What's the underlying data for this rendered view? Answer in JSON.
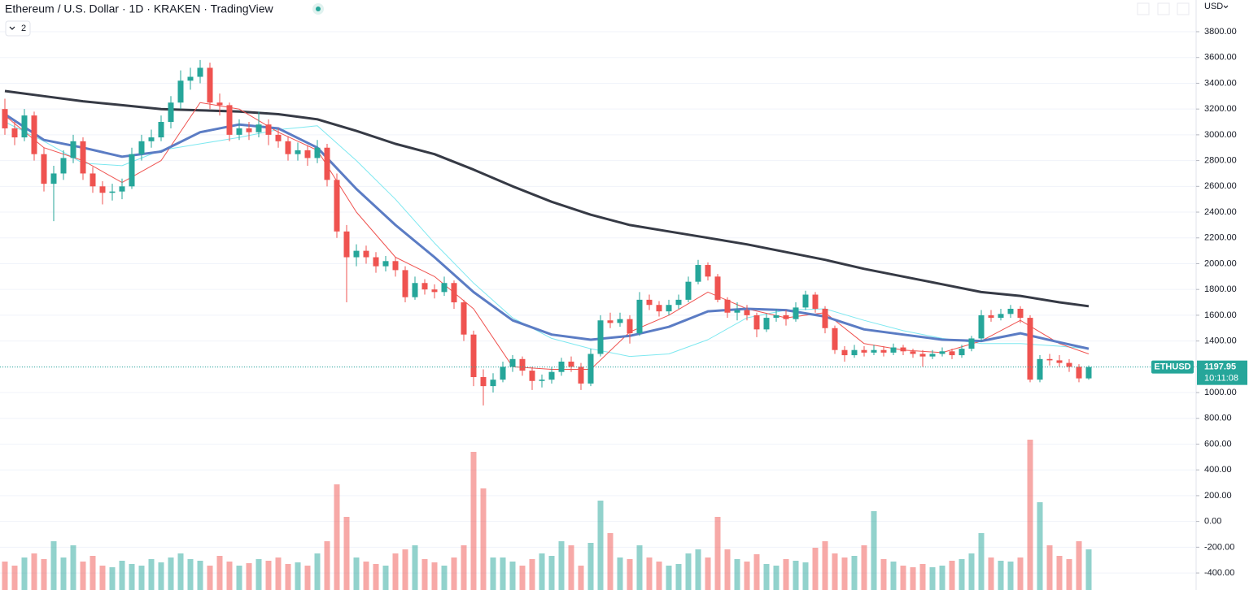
{
  "chart_data": {
    "type": "candlestick",
    "title": "Ethereum / U.S. Dollar · 1D · KRAKEN · TradingView",
    "indicator_badge": "2",
    "currency": "USD",
    "symbol": "ETHUSD",
    "countdown": "10:11:08",
    "up_color": "#26a69a",
    "down_color": "#ef5350",
    "grid": true,
    "ylim": [
      -532,
      4046
    ],
    "yticks": [
      {
        "value": -400,
        "label": "-400.00"
      },
      {
        "value": -200,
        "label": "-200.00"
      },
      {
        "value": 0,
        "label": "0.00"
      },
      {
        "value": 200,
        "label": "200.00"
      },
      {
        "value": 400,
        "label": "400.00"
      },
      {
        "value": 600,
        "label": "600.00"
      },
      {
        "value": 800,
        "label": "800.00"
      },
      {
        "value": 1000,
        "label": "1000.00"
      },
      {
        "value": 1200,
        "label": "1200.00"
      },
      {
        "value": 1400,
        "label": "1400.00"
      },
      {
        "value": 1600,
        "label": "1600.00"
      },
      {
        "value": 1800,
        "label": "1800.00"
      },
      {
        "value": 2000,
        "label": "2000.00"
      },
      {
        "value": 2200,
        "label": "2200.00"
      },
      {
        "value": 2400,
        "label": "2400.00"
      },
      {
        "value": 2600,
        "label": "2600.00"
      },
      {
        "value": 2800,
        "label": "2800.00"
      },
      {
        "value": 3000,
        "label": "3000.00"
      },
      {
        "value": 3200,
        "label": "3200.00"
      },
      {
        "value": 3400,
        "label": "3400.00"
      },
      {
        "value": 3600,
        "label": "3600.00"
      },
      {
        "value": 3800,
        "label": "3800.00"
      }
    ],
    "ohlc": [
      [
        3200,
        3280,
        3000,
        3050
      ],
      [
        3050,
        3100,
        2920,
        2980
      ],
      [
        2980,
        3200,
        2950,
        3150
      ],
      [
        3150,
        3180,
        2800,
        2850
      ],
      [
        2850,
        2900,
        2560,
        2620
      ],
      [
        2620,
        2760,
        2330,
        2700
      ],
      [
        2700,
        2880,
        2650,
        2820
      ],
      [
        2820,
        3000,
        2780,
        2950
      ],
      [
        2950,
        2980,
        2650,
        2700
      ],
      [
        2700,
        2750,
        2550,
        2600
      ],
      [
        2600,
        2640,
        2460,
        2550
      ],
      [
        2550,
        2620,
        2490,
        2560
      ],
      [
        2560,
        2660,
        2500,
        2600
      ],
      [
        2600,
        2900,
        2580,
        2850
      ],
      [
        2850,
        3000,
        2800,
        2950
      ],
      [
        2950,
        3040,
        2900,
        2980
      ],
      [
        2980,
        3150,
        2950,
        3100
      ],
      [
        3100,
        3300,
        3050,
        3250
      ],
      [
        3250,
        3500,
        3200,
        3420
      ],
      [
        3420,
        3520,
        3350,
        3450
      ],
      [
        3450,
        3580,
        3400,
        3520
      ],
      [
        3520,
        3560,
        3200,
        3250
      ],
      [
        3250,
        3320,
        3150,
        3230
      ],
      [
        3230,
        3250,
        2950,
        3000
      ],
      [
        3000,
        3120,
        2960,
        3050
      ],
      [
        3050,
        3100,
        2960,
        3020
      ],
      [
        3020,
        3180,
        2980,
        3080
      ],
      [
        3080,
        3120,
        2920,
        3000
      ],
      [
        3000,
        3050,
        2900,
        2950
      ],
      [
        2950,
        2990,
        2800,
        2850
      ],
      [
        2850,
        2940,
        2800,
        2880
      ],
      [
        2880,
        2920,
        2760,
        2820
      ],
      [
        2820,
        2960,
        2780,
        2900
      ],
      [
        2900,
        2930,
        2600,
        2650
      ],
      [
        2650,
        2700,
        2200,
        2250
      ],
      [
        2250,
        2300,
        1700,
        2050
      ],
      [
        2050,
        2150,
        1980,
        2100
      ],
      [
        2100,
        2140,
        2000,
        2050
      ],
      [
        2050,
        2090,
        1930,
        1980
      ],
      [
        1980,
        2060,
        1940,
        2020
      ],
      [
        2020,
        2050,
        1900,
        1950
      ],
      [
        1950,
        1980,
        1700,
        1740
      ],
      [
        1740,
        1900,
        1720,
        1850
      ],
      [
        1850,
        1880,
        1760,
        1800
      ],
      [
        1800,
        1840,
        1730,
        1780
      ],
      [
        1780,
        1900,
        1750,
        1850
      ],
      [
        1850,
        1870,
        1650,
        1700
      ],
      [
        1700,
        1720,
        1400,
        1450
      ],
      [
        1450,
        1480,
        1050,
        1120
      ],
      [
        1120,
        1180,
        900,
        1050
      ],
      [
        1050,
        1150,
        1000,
        1100
      ],
      [
        1100,
        1240,
        1080,
        1200
      ],
      [
        1200,
        1290,
        1160,
        1260
      ],
      [
        1260,
        1280,
        1130,
        1170
      ],
      [
        1170,
        1200,
        1020,
        1090
      ],
      [
        1090,
        1140,
        1040,
        1100
      ],
      [
        1100,
        1200,
        1070,
        1160
      ],
      [
        1160,
        1270,
        1130,
        1240
      ],
      [
        1240,
        1280,
        1160,
        1200
      ],
      [
        1200,
        1230,
        1020,
        1070
      ],
      [
        1070,
        1340,
        1050,
        1300
      ],
      [
        1300,
        1600,
        1280,
        1560
      ],
      [
        1560,
        1620,
        1500,
        1540
      ],
      [
        1540,
        1620,
        1510,
        1570
      ],
      [
        1570,
        1600,
        1380,
        1460
      ],
      [
        1460,
        1780,
        1440,
        1720
      ],
      [
        1720,
        1760,
        1640,
        1680
      ],
      [
        1680,
        1710,
        1590,
        1630
      ],
      [
        1630,
        1720,
        1600,
        1680
      ],
      [
        1680,
        1760,
        1650,
        1720
      ],
      [
        1720,
        1900,
        1700,
        1860
      ],
      [
        1860,
        2030,
        1840,
        1990
      ],
      [
        1990,
        2010,
        1870,
        1900
      ],
      [
        1900,
        1920,
        1700,
        1720
      ],
      [
        1720,
        1740,
        1580,
        1620
      ],
      [
        1620,
        1700,
        1560,
        1640
      ],
      [
        1640,
        1680,
        1560,
        1600
      ],
      [
        1600,
        1620,
        1430,
        1490
      ],
      [
        1490,
        1610,
        1470,
        1580
      ],
      [
        1580,
        1650,
        1550,
        1600
      ],
      [
        1600,
        1640,
        1520,
        1570
      ],
      [
        1570,
        1700,
        1550,
        1660
      ],
      [
        1660,
        1790,
        1640,
        1760
      ],
      [
        1760,
        1780,
        1620,
        1650
      ],
      [
        1650,
        1670,
        1460,
        1500
      ],
      [
        1500,
        1520,
        1300,
        1330
      ],
      [
        1330,
        1360,
        1240,
        1290
      ],
      [
        1290,
        1370,
        1270,
        1330
      ],
      [
        1330,
        1360,
        1280,
        1310
      ],
      [
        1310,
        1370,
        1290,
        1330
      ],
      [
        1330,
        1360,
        1280,
        1310
      ],
      [
        1310,
        1380,
        1290,
        1350
      ],
      [
        1350,
        1370,
        1290,
        1320
      ],
      [
        1320,
        1340,
        1270,
        1300
      ],
      [
        1300,
        1330,
        1200,
        1280
      ],
      [
        1280,
        1330,
        1260,
        1300
      ],
      [
        1300,
        1350,
        1280,
        1320
      ],
      [
        1320,
        1340,
        1260,
        1290
      ],
      [
        1290,
        1370,
        1270,
        1340
      ],
      [
        1340,
        1440,
        1320,
        1420
      ],
      [
        1420,
        1640,
        1400,
        1600
      ],
      [
        1600,
        1640,
        1550,
        1580
      ],
      [
        1580,
        1650,
        1560,
        1610
      ],
      [
        1610,
        1680,
        1580,
        1650
      ],
      [
        1650,
        1670,
        1540,
        1580
      ],
      [
        1580,
        1600,
        1080,
        1100
      ],
      [
        1100,
        1290,
        1080,
        1260
      ],
      [
        1260,
        1300,
        1210,
        1250
      ],
      [
        1250,
        1290,
        1200,
        1230
      ],
      [
        1230,
        1260,
        1160,
        1200
      ],
      [
        1200,
        1220,
        1080,
        1110
      ],
      [
        1110,
        1210,
        1100,
        1197.95
      ]
    ],
    "volume": [
      35,
      30,
      40,
      45,
      38,
      60,
      40,
      55,
      35,
      42,
      30,
      28,
      36,
      32,
      30,
      38,
      34,
      40,
      45,
      38,
      36,
      30,
      42,
      35,
      30,
      33,
      38,
      36,
      40,
      32,
      34,
      30,
      45,
      60,
      130,
      90,
      40,
      35,
      32,
      30,
      45,
      50,
      55,
      38,
      34,
      30,
      40,
      55,
      170,
      125,
      40,
      40,
      35,
      30,
      38,
      45,
      42,
      60,
      55,
      30,
      58,
      110,
      70,
      40,
      38,
      55,
      40,
      35,
      30,
      32,
      45,
      50,
      40,
      90,
      50,
      38,
      35,
      44,
      32,
      30,
      38,
      36,
      34,
      52,
      60,
      45,
      40,
      42,
      55,
      97,
      38,
      35,
      30,
      28,
      32,
      28,
      30,
      36,
      38,
      45,
      70,
      40,
      36,
      35,
      40,
      185,
      108,
      55,
      42,
      38,
      60,
      50
    ],
    "overlays": [
      {
        "color": "#363a45",
        "width": 3,
        "x": [
          0,
          4,
          8,
          12,
          16,
          20,
          24,
          28,
          32,
          36,
          40,
          44,
          48,
          52,
          56,
          60,
          64,
          68,
          72,
          76,
          80,
          84,
          88,
          92,
          96,
          100,
          104,
          108,
          111
        ],
        "values": [
          3340,
          3300,
          3260,
          3230,
          3200,
          3190,
          3180,
          3160,
          3120,
          3030,
          2930,
          2850,
          2730,
          2600,
          2480,
          2380,
          2300,
          2250,
          2200,
          2150,
          2090,
          2030,
          1960,
          1900,
          1840,
          1780,
          1750,
          1700,
          1670
        ]
      },
      {
        "color": "#7ee8f0",
        "width": 1,
        "x": [
          0,
          4,
          8,
          12,
          16,
          20,
          24,
          28,
          32,
          36,
          40,
          44,
          48,
          52,
          56,
          60,
          64,
          68,
          72,
          76,
          80,
          84,
          88,
          92,
          96,
          100,
          104,
          108,
          111
        ],
        "values": [
          3100,
          2950,
          2780,
          2760,
          2880,
          2930,
          2980,
          3040,
          3070,
          2800,
          2500,
          2160,
          1850,
          1580,
          1420,
          1340,
          1280,
          1300,
          1410,
          1580,
          1640,
          1650,
          1560,
          1480,
          1420,
          1380,
          1380,
          1360,
          1340
        ]
      },
      {
        "color": "#ef5350",
        "width": 1,
        "x": [
          0,
          4,
          8,
          12,
          16,
          20,
          24,
          28,
          32,
          36,
          40,
          44,
          48,
          52,
          56,
          60,
          64,
          68,
          72,
          76,
          80,
          84,
          88,
          92,
          96,
          100,
          104,
          108,
          111
        ],
        "values": [
          3150,
          2900,
          2800,
          2630,
          2800,
          3250,
          3200,
          3020,
          2880,
          2400,
          2050,
          1900,
          1650,
          1200,
          1180,
          1180,
          1470,
          1600,
          1780,
          1650,
          1580,
          1620,
          1380,
          1330,
          1310,
          1400,
          1560,
          1380,
          1300
        ]
      },
      {
        "color": "#5b7cc4",
        "width": 3,
        "x": [
          0,
          4,
          8,
          12,
          16,
          20,
          24,
          28,
          32,
          36,
          40,
          44,
          48,
          52,
          56,
          60,
          64,
          68,
          72,
          76,
          80,
          84,
          88,
          92,
          96,
          100,
          104,
          108,
          111
        ],
        "values": [
          3160,
          2960,
          2900,
          2830,
          2870,
          3020,
          3080,
          3050,
          2900,
          2580,
          2300,
          2050,
          1780,
          1560,
          1450,
          1410,
          1440,
          1510,
          1630,
          1650,
          1640,
          1590,
          1490,
          1450,
          1410,
          1400,
          1460,
          1390,
          1340
        ]
      }
    ]
  }
}
